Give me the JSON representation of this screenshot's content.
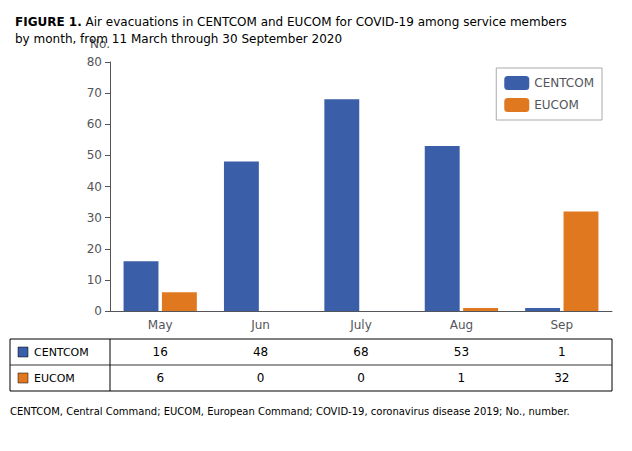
{
  "chart_data": {
    "type": "bar",
    "title": "FIGURE 1. Air evacuations in CENTCOM and EUCOM for COVID-19 among service members\nby month, from 11 March through 30 September 2020",
    "categories": [
      "May",
      "Jun",
      "July",
      "Aug",
      "Sep"
    ],
    "series": [
      {
        "name": "CENTCOM",
        "color": "#3A5EA8",
        "values": [
          16,
          48,
          68,
          53,
          1
        ]
      },
      {
        "name": "EUCOM",
        "color": "#E07820",
        "values": [
          6,
          0,
          0,
          1,
          32
        ]
      }
    ],
    "ylabel": "No.",
    "ylim": [
      0,
      80
    ],
    "yticks": [
      0,
      10,
      20,
      30,
      40,
      50,
      60,
      70,
      80
    ],
    "grid": false,
    "legend": "upper right",
    "annotations": [
      "CENTCOM, Central Command; EUCOM, European Command; COVID-19, coronavirus disease 2019; No., number."
    ]
  }
}
